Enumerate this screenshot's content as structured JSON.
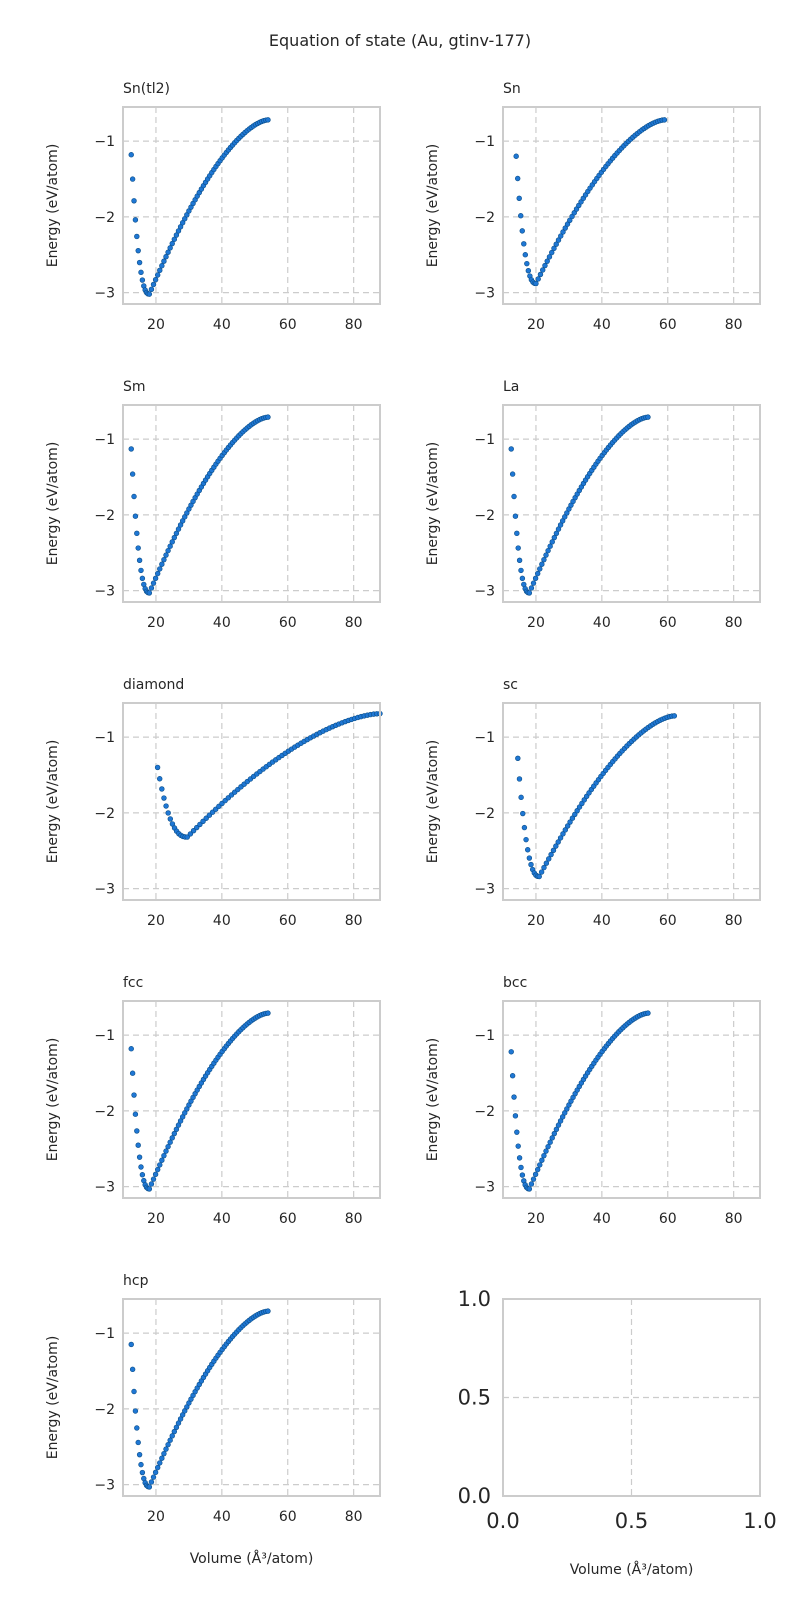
{
  "suptitle": "Equation of state (Au, gtinv-177)",
  "xlabel": "Volume (Å³/atom)",
  "ylabel": "Energy (eV/atom)",
  "chart_data": [
    {
      "type": "scatter",
      "title": "Sn(tl2)",
      "xlim": [
        10,
        88
      ],
      "ylim": [
        -3.15,
        -0.55
      ],
      "xticks": [
        20,
        40,
        60,
        80
      ],
      "yticks": [
        -1,
        -2,
        -3
      ],
      "grid": true,
      "v0": 18.0,
      "e0": -3.02,
      "vmin": 12.5,
      "vmax": 54.0,
      "emax": -0.72,
      "emin_v": 12.5,
      "emin_e": -1.18,
      "n": 70
    },
    {
      "type": "scatter",
      "title": "Sn",
      "xlim": [
        10,
        88
      ],
      "ylim": [
        -3.15,
        -0.55
      ],
      "xticks": [
        20,
        40,
        60,
        80
      ],
      "yticks": [
        -1,
        -2,
        -3
      ],
      "grid": true,
      "v0": 20.0,
      "e0": -2.88,
      "vmin": 14.0,
      "vmax": 59.0,
      "emax": -0.72,
      "emin_v": 14.0,
      "emin_e": -1.2,
      "n": 70
    },
    {
      "type": "scatter",
      "title": "Sm",
      "xlim": [
        10,
        88
      ],
      "ylim": [
        -3.15,
        -0.55
      ],
      "xticks": [
        20,
        40,
        60,
        80
      ],
      "yticks": [
        -1,
        -2,
        -3
      ],
      "grid": true,
      "v0": 18.0,
      "e0": -3.03,
      "vmin": 12.5,
      "vmax": 54.0,
      "emax": -0.71,
      "emin_v": 12.5,
      "emin_e": -1.13,
      "n": 70
    },
    {
      "type": "scatter",
      "title": "La",
      "xlim": [
        10,
        88
      ],
      "ylim": [
        -3.15,
        -0.55
      ],
      "xticks": [
        20,
        40,
        60,
        80
      ],
      "yticks": [
        -1,
        -2,
        -3
      ],
      "grid": true,
      "v0": 18.0,
      "e0": -3.03,
      "vmin": 12.5,
      "vmax": 54.0,
      "emax": -0.71,
      "emin_v": 12.5,
      "emin_e": -1.13,
      "n": 70
    },
    {
      "type": "scatter",
      "title": "diamond",
      "xlim": [
        10,
        88
      ],
      "ylim": [
        -3.15,
        -0.55
      ],
      "xticks": [
        20,
        40,
        60,
        80
      ],
      "yticks": [
        -1,
        -2,
        -3
      ],
      "grid": true,
      "v0": 29.5,
      "e0": -2.32,
      "vmin": 20.5,
      "vmax": 88.0,
      "emax": -0.69,
      "emin_v": 20.5,
      "emin_e": -1.4,
      "n": 75
    },
    {
      "type": "scatter",
      "title": "sc",
      "xlim": [
        10,
        88
      ],
      "ylim": [
        -3.15,
        -0.55
      ],
      "xticks": [
        20,
        40,
        60,
        80
      ],
      "yticks": [
        -1,
        -2,
        -3
      ],
      "grid": true,
      "v0": 21.0,
      "e0": -2.84,
      "vmin": 14.5,
      "vmax": 62.0,
      "emax": -0.72,
      "emin_v": 14.5,
      "emin_e": -1.28,
      "n": 70
    },
    {
      "type": "scatter",
      "title": "fcc",
      "xlim": [
        10,
        88
      ],
      "ylim": [
        -3.15,
        -0.55
      ],
      "xticks": [
        20,
        40,
        60,
        80
      ],
      "yticks": [
        -1,
        -2,
        -3
      ],
      "grid": true,
      "v0": 18.0,
      "e0": -3.03,
      "vmin": 12.5,
      "vmax": 54.0,
      "emax": -0.71,
      "emin_v": 12.5,
      "emin_e": -1.18,
      "n": 70
    },
    {
      "type": "scatter",
      "title": "bcc",
      "xlim": [
        10,
        88
      ],
      "ylim": [
        -3.15,
        -0.55
      ],
      "xticks": [
        20,
        40,
        60,
        80
      ],
      "yticks": [
        -1,
        -2,
        -3
      ],
      "grid": true,
      "v0": 18.0,
      "e0": -3.03,
      "vmin": 12.5,
      "vmax": 54.0,
      "emax": -0.71,
      "emin_v": 12.5,
      "emin_e": -1.22,
      "n": 70
    },
    {
      "type": "scatter",
      "title": "hcp",
      "xlim": [
        10,
        88
      ],
      "ylim": [
        -3.15,
        -0.55
      ],
      "xticks": [
        20,
        40,
        60,
        80
      ],
      "yticks": [
        -1,
        -2,
        -3
      ],
      "grid": true,
      "v0": 18.0,
      "e0": -3.03,
      "vmin": 12.5,
      "vmax": 54.0,
      "emax": -0.71,
      "emin_v": 12.5,
      "emin_e": -1.15,
      "n": 70
    },
    {
      "type": "scatter",
      "title": "",
      "xlim": [
        0,
        1
      ],
      "ylim": [
        0,
        1
      ],
      "xticks": [
        0.0,
        0.5,
        1.0
      ],
      "yticks": [
        0.0,
        0.5,
        1.0
      ],
      "xtick_labels": [
        "0.0",
        "0.5",
        "1.0"
      ],
      "ytick_labels": [
        "0.0",
        "0.5",
        "1.0"
      ],
      "grid": true,
      "empty": true
    }
  ]
}
